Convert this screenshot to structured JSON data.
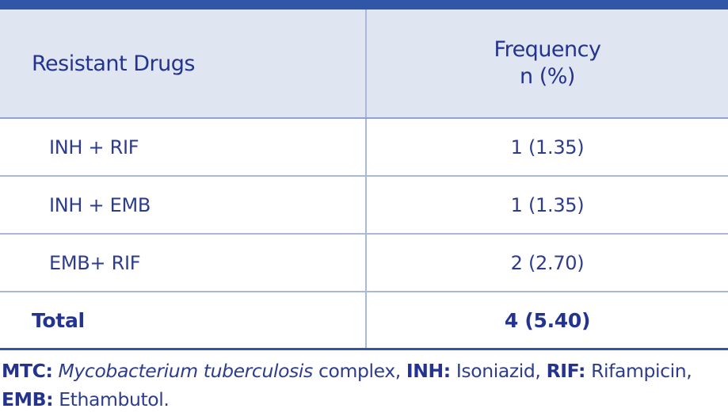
{
  "table": {
    "header": [
      "Resistant Drugs",
      [
        "Frequency",
        "n (%)"
      ]
    ],
    "rows": [
      [
        "INH + RIF",
        "1 (1.35)"
      ],
      [
        "INH + EMB",
        "1 (1.35)"
      ],
      [
        "EMB+ RIF",
        "2 (2.70)"
      ],
      [
        "Total",
        "4 (5.40)"
      ]
    ]
  },
  "footnote": {
    "line1": [
      "MTC:",
      "Mycobacterium tuberculosis",
      "complex,",
      "INH:",
      "Isoniazid,",
      "RIF:",
      "Rifampicin,"
    ],
    "line2": [
      "EMB:",
      "Ethambutol."
    ]
  }
}
